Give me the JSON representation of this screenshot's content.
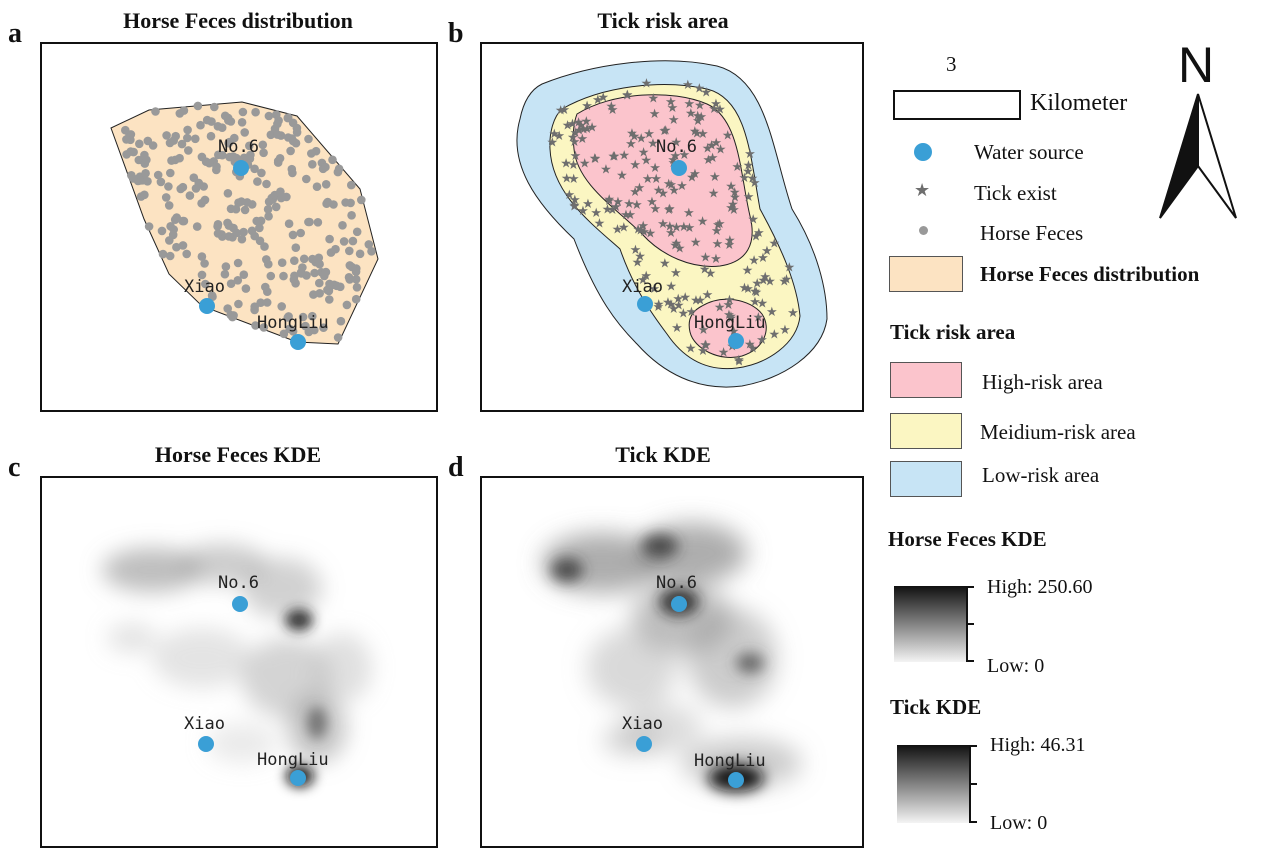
{
  "panels": {
    "a": {
      "letter": "a",
      "title": "Horse Feces distribution"
    },
    "b": {
      "letter": "b",
      "title": "Tick risk area"
    },
    "c": {
      "letter": "c",
      "title": "Horse Feces KDE"
    },
    "d": {
      "letter": "d",
      "title": "Tick KDE"
    }
  },
  "sites": {
    "no6": "No.6",
    "xiao": "Xiao",
    "hongliu": "HongLiu"
  },
  "scale_bar": {
    "value": "3",
    "unit": "Kilometer"
  },
  "north_arrow": {
    "label": "N",
    "icon": "north-arrow-icon"
  },
  "legend": {
    "water_source": "Water source",
    "tick_exist": "Tick exist",
    "horse_feces": "Horse Feces",
    "feces_distribution": "Horse Feces distribution",
    "tick_risk_heading": "Tick risk area",
    "high_risk": "High-risk area",
    "medium_risk": "Meidium-risk area",
    "low_risk": "Low-risk area",
    "feces_kde_heading": "Horse Feces KDE",
    "feces_kde_high": "High: 250.60",
    "feces_kde_low": "Low: 0",
    "tick_kde_heading": "Tick KDE",
    "tick_kde_high": "High: 46.31",
    "tick_kde_low": "Low: 0"
  },
  "colors": {
    "water_source": "#3a9fd6",
    "feces_point": "#999999",
    "tick_star": "#6e6e6e",
    "feces_area": "#fce3c2",
    "high_risk": "#fbc4cc",
    "medium_risk": "#fbf6c2",
    "low_risk": "#c7e4f5"
  }
}
